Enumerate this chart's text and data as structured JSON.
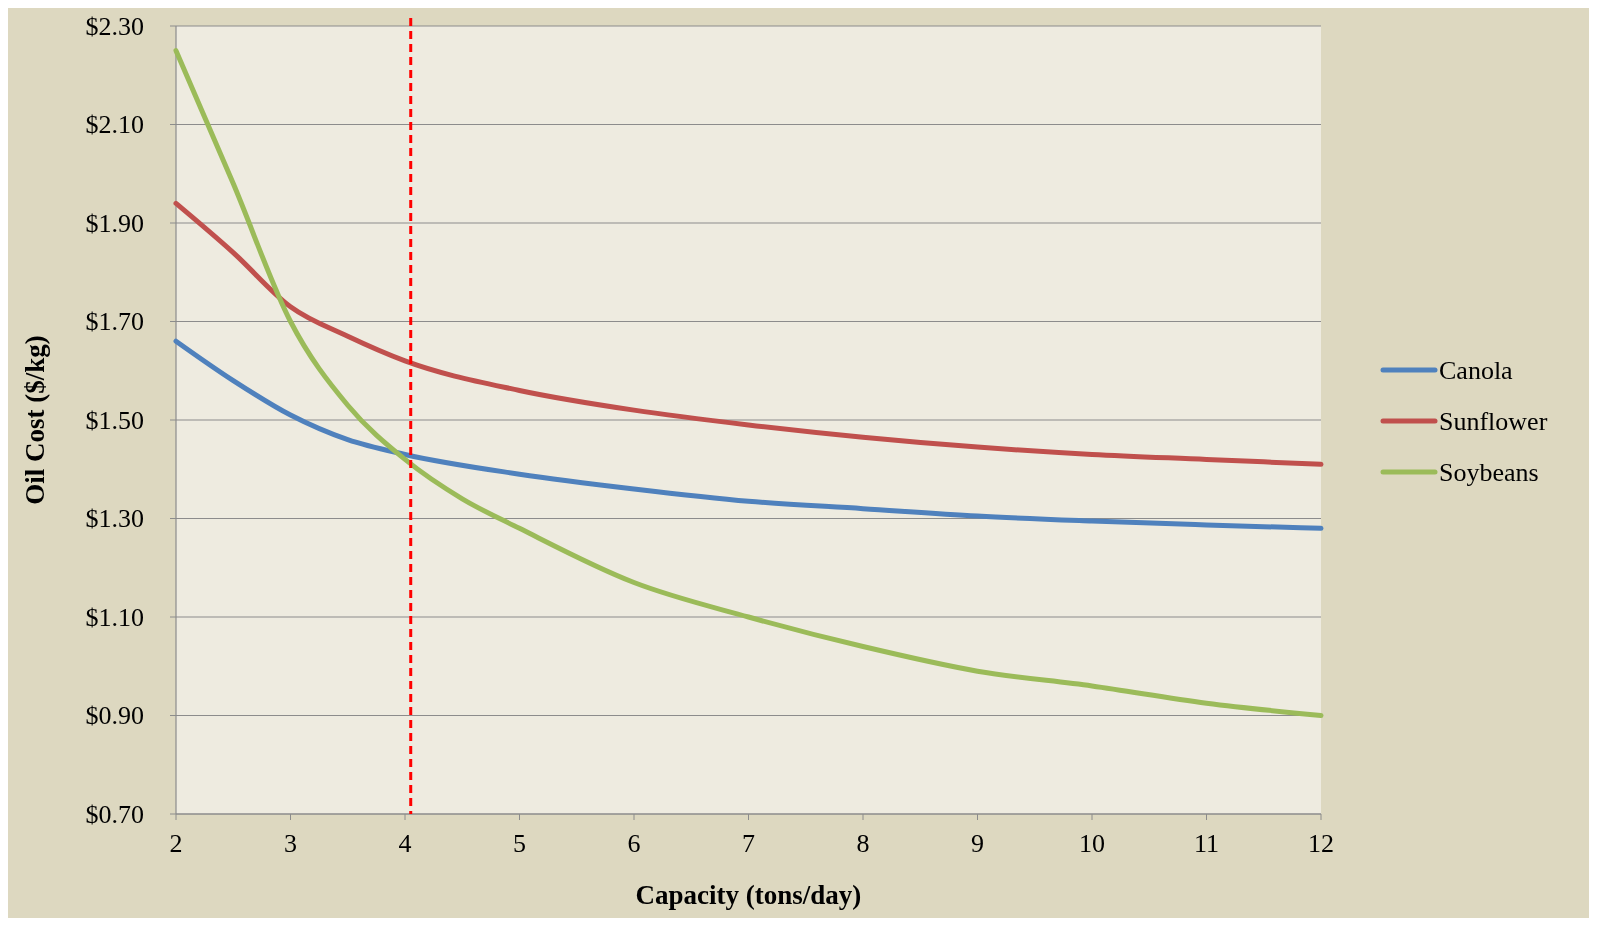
{
  "chart_data": {
    "type": "line",
    "xlabel": "Capacity (tons/day)",
    "ylabel": "Oil Cost ($/kg)",
    "xlim": [
      2,
      12
    ],
    "xticks": [
      2,
      3,
      4,
      5,
      6,
      7,
      8,
      9,
      10,
      11,
      12
    ],
    "ylim": [
      0.7,
      2.3
    ],
    "yticks": [
      {
        "value": 0.7,
        "label": "$0.70"
      },
      {
        "value": 0.9,
        "label": "$0.90"
      },
      {
        "value": 1.1,
        "label": "$1.10"
      },
      {
        "value": 1.3,
        "label": "$1.30"
      },
      {
        "value": 1.5,
        "label": "$1.50"
      },
      {
        "value": 1.7,
        "label": "$1.70"
      },
      {
        "value": 1.9,
        "label": "$1.90"
      },
      {
        "value": 2.1,
        "label": "$2.10"
      },
      {
        "value": 2.3,
        "label": "$2.30"
      }
    ],
    "grid": "y",
    "legend": "right",
    "marker": "none",
    "line_style": "solid",
    "series": [
      {
        "name": "Canola",
        "color": "#4f81bd",
        "x": [
          2,
          2.5,
          3,
          3.5,
          4,
          5,
          6,
          7,
          8,
          9,
          10,
          11,
          12
        ],
        "values": [
          1.66,
          1.58,
          1.51,
          1.46,
          1.43,
          1.39,
          1.36,
          1.335,
          1.32,
          1.305,
          1.295,
          1.287,
          1.28
        ]
      },
      {
        "name": "Sunflower",
        "color": "#c0504d",
        "x": [
          2,
          2.5,
          3,
          3.5,
          4,
          5,
          6,
          7,
          8,
          9,
          10,
          11,
          12
        ],
        "values": [
          1.94,
          1.84,
          1.73,
          1.67,
          1.62,
          1.56,
          1.52,
          1.49,
          1.465,
          1.445,
          1.43,
          1.42,
          1.41
        ]
      },
      {
        "name": "Soybeans",
        "color": "#9bbb59",
        "x": [
          2,
          2.5,
          3,
          3.5,
          4,
          4.5,
          5,
          6,
          7,
          8,
          9,
          10,
          11,
          12
        ],
        "values": [
          2.25,
          1.98,
          1.7,
          1.53,
          1.42,
          1.34,
          1.28,
          1.17,
          1.1,
          1.04,
          0.99,
          0.96,
          0.925,
          0.9
        ]
      }
    ],
    "ref_lines": [
      {
        "axis": "x",
        "value": 4.05,
        "color": "#ff0000",
        "line_style": "dashed"
      }
    ]
  }
}
